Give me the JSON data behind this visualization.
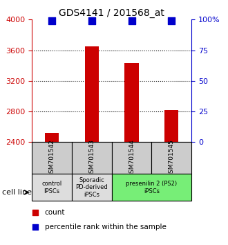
{
  "title": "GDS4141 / 201568_at",
  "samples": [
    "GSM701542",
    "GSM701543",
    "GSM701544",
    "GSM701545"
  ],
  "counts": [
    2520,
    3650,
    3430,
    2820
  ],
  "percentiles": [
    99,
    99,
    99,
    99
  ],
  "ylim_left": [
    2400,
    4000
  ],
  "ylim_right": [
    0,
    100
  ],
  "yticks_left": [
    2400,
    2800,
    3200,
    3600,
    4000
  ],
  "yticks_right": [
    0,
    25,
    50,
    75,
    100
  ],
  "bar_color": "#cc0000",
  "dot_color": "#0000cc",
  "groups": [
    {
      "label": "control\nIPSCs",
      "start": 0,
      "end": 1,
      "color": "#dddddd"
    },
    {
      "label": "Sporadic\nPD-derived\niPSCs",
      "start": 1,
      "end": 2,
      "color": "#dddddd"
    },
    {
      "label": "presenilin 2 (PS2)\niPSCs",
      "start": 2,
      "end": 4,
      "color": "#77ee77"
    }
  ],
  "sample_box_color": "#cccccc",
  "bar_width": 0.35,
  "dot_size": 55,
  "legend_count_color": "#cc0000",
  "legend_pct_color": "#0000cc",
  "cell_line_label": "cell line",
  "legend_count": "count",
  "legend_pct": "percentile rank within the sample"
}
